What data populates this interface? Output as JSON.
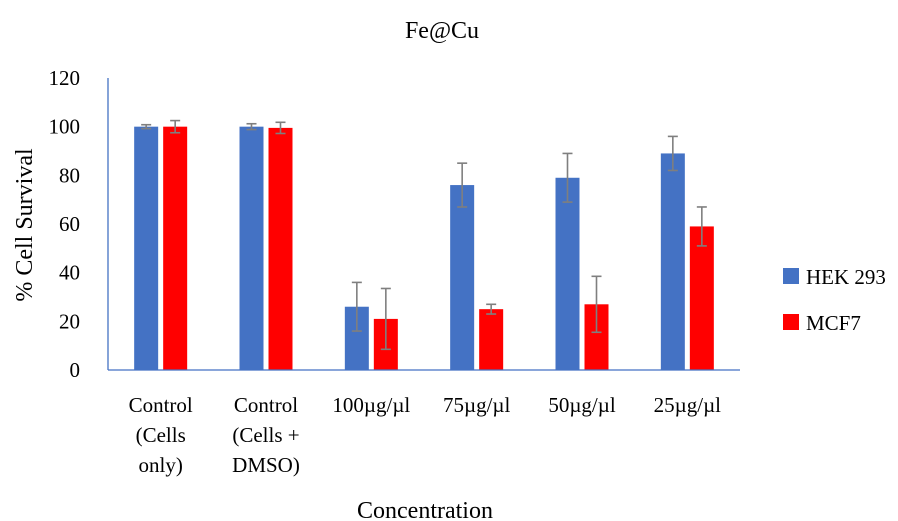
{
  "chart_data": {
    "type": "bar",
    "title": "Fe@Cu",
    "xlabel": "Concentration",
    "ylabel": "% Cell Survival",
    "ylim": [
      0,
      120
    ],
    "yticks": [
      0,
      20,
      40,
      60,
      80,
      100,
      120
    ],
    "grid": false,
    "legend_position": "right",
    "categories": [
      [
        "Control",
        "(Cells",
        "only)"
      ],
      [
        "Control",
        "(Cells +",
        "DMSO)"
      ],
      [
        "100µg/µl"
      ],
      [
        "75µg/µl"
      ],
      [
        "50µg/µl"
      ],
      [
        "25µg/µl"
      ]
    ],
    "series": [
      {
        "name": "HEK 293",
        "color": "#4472C4",
        "values": [
          100,
          100,
          26,
          76,
          79,
          89
        ],
        "errors": [
          0.8,
          1.2,
          10,
          9,
          10,
          7
        ]
      },
      {
        "name": "MCF7",
        "color": "#FF0000",
        "values": [
          100,
          99.5,
          21,
          25,
          27,
          59
        ],
        "errors": [
          2.5,
          2.3,
          12.5,
          2,
          11.5,
          8
        ]
      }
    ]
  }
}
